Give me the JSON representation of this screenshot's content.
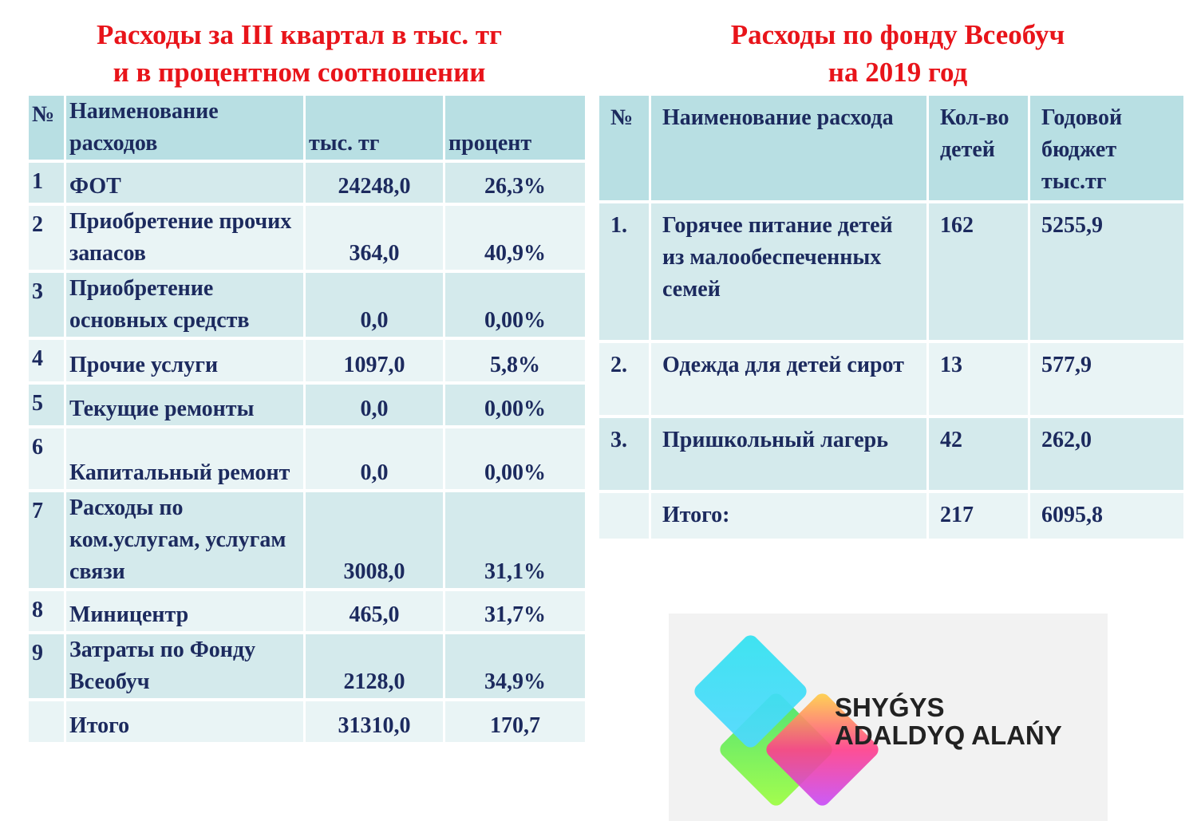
{
  "left": {
    "title": [
      "Расходы за III квартал в тыс. тг",
      "и в процентном соотношении"
    ],
    "header": [
      "№",
      "Наименование расходов",
      "тыс. тг",
      "процент"
    ],
    "rows": [
      [
        "1",
        "ФОТ",
        "24248,0",
        "26,3%"
      ],
      [
        "2",
        "Приобретение прочих запасов",
        "364,0",
        "40,9%"
      ],
      [
        "3",
        "Приобретение основных средств",
        "0,0",
        "0,00%"
      ],
      [
        "4",
        "Прочие услуги",
        "1097,0",
        "5,8%"
      ],
      [
        "5",
        "Текущие ремонты",
        "0,0",
        "0,00%"
      ],
      [
        "6",
        "Капитальный ремонт",
        "0,0",
        "0,00%"
      ],
      [
        "7",
        "Расходы по ком.услугам, услугам связи",
        "3008,0",
        "31,1%"
      ],
      [
        "8",
        "Миницентр",
        "465,0",
        "31,7%"
      ],
      [
        "9",
        "Затраты по Фонду Всеобуч",
        "2128,0",
        "34,9%"
      ],
      [
        null,
        "Итого",
        "31310,0",
        "170,7"
      ]
    ]
  },
  "right": {
    "title": [
      "Расходы по фонду Всеобуч",
      "на 2019 год"
    ],
    "header": [
      "№",
      "Наименование расхода",
      "Кол-во детей",
      "Годовой бюджет тыс.тг"
    ],
    "rows": [
      [
        "1.",
        "Горячее питание детей из малообеспеченных семей",
        "162",
        "5255,9"
      ],
      [
        "2.",
        "Одежда для детей сирот",
        "13",
        "577,9"
      ],
      [
        "3.",
        "Пришкольный лагерь",
        "42",
        "262,0"
      ],
      [
        null,
        "Итого:",
        "217",
        "6095,8"
      ]
    ]
  },
  "logo": [
    "SHYǴYS",
    "ADALDYQ ALAŃY"
  ]
}
